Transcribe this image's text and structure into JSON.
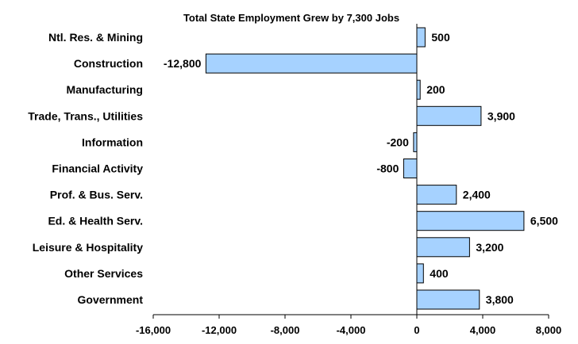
{
  "chart_data": {
    "type": "bar",
    "orientation": "horizontal",
    "title": "Total State Employment Grew by 7,300 Jobs",
    "categories": [
      "Ntl. Res. & Mining",
      "Construction",
      "Manufacturing",
      "Trade, Trans., Utilities",
      "Information",
      "Financial Activity",
      "Prof. & Bus. Serv.",
      "Ed. & Health Serv.",
      "Leisure & Hospitality",
      "Other Services",
      "Government"
    ],
    "values": [
      500,
      -12800,
      200,
      3900,
      -200,
      -800,
      2400,
      6500,
      3200,
      400,
      3800
    ],
    "value_labels": [
      "500",
      "-12,800",
      "200",
      "3,900",
      "-200",
      "-800",
      "2,400",
      "6,500",
      "3,200",
      "400",
      "3,800"
    ],
    "xlim": [
      -16000,
      8000
    ],
    "x_ticks": [
      -16000,
      -12000,
      -8000,
      -4000,
      0,
      4000,
      8000
    ],
    "x_tick_labels": [
      "-16,000",
      "-12,000",
      "-8,000",
      "-4,000",
      "0",
      "4,000",
      "8,000"
    ],
    "xlabel": "",
    "ylabel": "",
    "grid": false,
    "legend": "none",
    "bar_fill": "#a6d2ff",
    "bar_stroke": "#000000"
  }
}
